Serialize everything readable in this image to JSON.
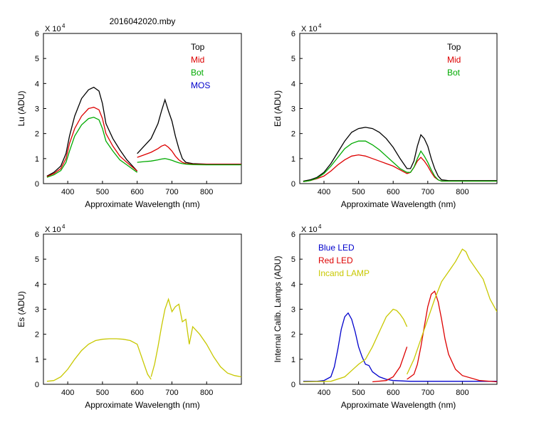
{
  "page_title": "2016042020.mby",
  "chart_data": [
    {
      "type": "line",
      "title": "",
      "xlabel": "Approximate Wavelength (nm)",
      "ylabel": "Lu (ADU)",
      "y_multiplier": "X 10",
      "y_multiplier_exp": "4",
      "xlim": [
        330,
        900
      ],
      "ylim": [
        0,
        6
      ],
      "xticks": [
        400,
        500,
        600,
        700,
        800
      ],
      "yticks": [
        0,
        1,
        2,
        3,
        4,
        5,
        6
      ],
      "legend": [
        {
          "label": "Top",
          "color": "#000000"
        },
        {
          "label": "Mid",
          "color": "#dd0000"
        },
        {
          "label": "Bot",
          "color": "#00aa00"
        },
        {
          "label": "MOS",
          "color": "#0000cc"
        }
      ],
      "series": [
        {
          "name": "Top",
          "color": "#000000",
          "segments": [
            {
              "x": [
                340,
                360,
                380,
                395,
                405,
                420,
                440,
                460,
                475,
                490,
                500,
                510,
                530,
                550,
                570,
                590,
                600
              ],
              "y": [
                0.3,
                0.45,
                0.7,
                1.2,
                1.9,
                2.7,
                3.4,
                3.75,
                3.85,
                3.7,
                3.2,
                2.4,
                1.8,
                1.35,
                0.95,
                0.65,
                0.5
              ]
            },
            {
              "x": [
                600,
                620,
                640,
                660,
                670,
                680,
                690,
                700,
                710,
                720,
                730,
                740,
                760,
                800,
                850,
                900
              ],
              "y": [
                1.2,
                1.5,
                1.8,
                2.4,
                2.9,
                3.35,
                2.9,
                2.5,
                1.9,
                1.4,
                1.0,
                0.85,
                0.8,
                0.78,
                0.78,
                0.78
              ]
            }
          ]
        },
        {
          "name": "Mid",
          "color": "#dd0000",
          "segments": [
            {
              "x": [
                340,
                360,
                380,
                395,
                405,
                420,
                440,
                460,
                475,
                490,
                500,
                510,
                530,
                550,
                570,
                590,
                600
              ],
              "y": [
                0.28,
                0.4,
                0.6,
                1.0,
                1.6,
                2.2,
                2.7,
                3.0,
                3.05,
                2.95,
                2.6,
                2.0,
                1.5,
                1.1,
                0.85,
                0.62,
                0.5
              ]
            },
            {
              "x": [
                600,
                620,
                640,
                660,
                670,
                680,
                690,
                700,
                710,
                720,
                730,
                740,
                760,
                800,
                850,
                900
              ],
              "y": [
                1.05,
                1.15,
                1.25,
                1.4,
                1.5,
                1.55,
                1.45,
                1.3,
                1.1,
                0.95,
                0.85,
                0.8,
                0.78,
                0.77,
                0.77,
                0.77
              ]
            }
          ]
        },
        {
          "name": "Bot",
          "color": "#00aa00",
          "segments": [
            {
              "x": [
                340,
                360,
                380,
                395,
                405,
                420,
                440,
                460,
                475,
                490,
                500,
                510,
                530,
                550,
                570,
                590,
                600
              ],
              "y": [
                0.25,
                0.35,
                0.52,
                0.85,
                1.3,
                1.9,
                2.35,
                2.6,
                2.65,
                2.55,
                2.2,
                1.7,
                1.3,
                0.95,
                0.75,
                0.55,
                0.45
              ]
            },
            {
              "x": [
                600,
                620,
                640,
                660,
                670,
                680,
                690,
                700,
                710,
                720,
                730,
                740,
                760,
                800,
                850,
                900
              ],
              "y": [
                0.85,
                0.88,
                0.9,
                0.95,
                0.98,
                1.0,
                0.97,
                0.93,
                0.88,
                0.83,
                0.8,
                0.78,
                0.76,
                0.75,
                0.75,
                0.75
              ]
            }
          ]
        }
      ]
    },
    {
      "type": "line",
      "title": "",
      "xlabel": "Approximate Wavelength (nm)",
      "ylabel": "Ed  (ADU)",
      "y_multiplier": "X 10",
      "y_multiplier_exp": "4",
      "xlim": [
        330,
        900
      ],
      "ylim": [
        0,
        6
      ],
      "xticks": [
        400,
        500,
        600,
        700,
        800
      ],
      "yticks": [
        0,
        1,
        2,
        3,
        4,
        5,
        6
      ],
      "legend": [
        {
          "label": "Top",
          "color": "#000000"
        },
        {
          "label": "Mid",
          "color": "#dd0000"
        },
        {
          "label": "Bot",
          "color": "#00aa00"
        }
      ],
      "series": [
        {
          "name": "Top",
          "color": "#000000",
          "segments": [
            {
              "x": [
                340,
                360,
                380,
                400,
                420,
                440,
                460,
                480,
                500,
                520,
                540,
                560,
                580,
                600,
                620,
                640,
                650,
                660,
                670,
                680,
                690,
                700,
                710,
                720,
                730,
                740,
                760,
                800,
                850,
                900
              ],
              "y": [
                0.1,
                0.15,
                0.25,
                0.45,
                0.8,
                1.25,
                1.7,
                2.05,
                2.2,
                2.25,
                2.2,
                2.05,
                1.8,
                1.45,
                1.0,
                0.6,
                0.6,
                0.9,
                1.5,
                1.95,
                1.8,
                1.5,
                1.0,
                0.6,
                0.3,
                0.15,
                0.12,
                0.12,
                0.12,
                0.12
              ]
            }
          ]
        },
        {
          "name": "Mid",
          "color": "#dd0000",
          "segments": [
            {
              "x": [
                340,
                360,
                380,
                400,
                420,
                440,
                460,
                480,
                500,
                520,
                540,
                560,
                580,
                600,
                620,
                640,
                650,
                660,
                670,
                680,
                690,
                700,
                710,
                720,
                730,
                740,
                760,
                800,
                850,
                900
              ],
              "y": [
                0.08,
                0.12,
                0.2,
                0.3,
                0.5,
                0.75,
                0.95,
                1.1,
                1.15,
                1.1,
                1.0,
                0.9,
                0.8,
                0.7,
                0.55,
                0.4,
                0.45,
                0.65,
                0.9,
                1.05,
                0.9,
                0.7,
                0.45,
                0.25,
                0.15,
                0.1,
                0.1,
                0.1,
                0.1,
                0.1
              ]
            }
          ]
        },
        {
          "name": "Bot",
          "color": "#00aa00",
          "segments": [
            {
              "x": [
                340,
                360,
                380,
                400,
                420,
                440,
                460,
                480,
                500,
                520,
                540,
                560,
                580,
                600,
                620,
                640,
                650,
                660,
                670,
                680,
                690,
                700,
                710,
                720,
                730,
                740,
                760,
                800,
                850,
                900
              ],
              "y": [
                0.08,
                0.12,
                0.22,
                0.4,
                0.7,
                1.05,
                1.4,
                1.6,
                1.7,
                1.7,
                1.55,
                1.35,
                1.1,
                0.85,
                0.6,
                0.45,
                0.45,
                0.65,
                1.0,
                1.3,
                1.1,
                0.85,
                0.55,
                0.3,
                0.15,
                0.1,
                0.1,
                0.1,
                0.1,
                0.1
              ]
            }
          ]
        }
      ]
    },
    {
      "type": "line",
      "title": "",
      "xlabel": "Approximate Wavelength (nm)",
      "ylabel": "Es  (ADU)",
      "y_multiplier": "X 10",
      "y_multiplier_exp": "4",
      "xlim": [
        330,
        900
      ],
      "ylim": [
        0,
        6
      ],
      "xticks": [
        400,
        500,
        600,
        700,
        800
      ],
      "yticks": [
        0,
        1,
        2,
        3,
        4,
        5,
        6
      ],
      "legend": [],
      "series": [
        {
          "name": "Es",
          "color": "#c8c800",
          "segments": [
            {
              "x": [
                340,
                360,
                380,
                400,
                420,
                440,
                460,
                480,
                500,
                520,
                540,
                560,
                580,
                600,
                610,
                620,
                630,
                640
              ],
              "y": [
                0.12,
                0.15,
                0.3,
                0.6,
                1.0,
                1.35,
                1.6,
                1.75,
                1.8,
                1.82,
                1.82,
                1.8,
                1.75,
                1.6,
                1.2,
                0.8,
                0.4,
                0.2
              ]
            },
            {
              "x": [
                640,
                650,
                660,
                670,
                680,
                690,
                700,
                710,
                720,
                730,
                740,
                750,
                760,
                780,
                800,
                820,
                840,
                860,
                880,
                900
              ],
              "y": [
                0.3,
                0.8,
                1.5,
                2.3,
                3.0,
                3.4,
                2.9,
                3.1,
                3.2,
                2.5,
                2.6,
                1.6,
                2.3,
                2.0,
                1.6,
                1.1,
                0.7,
                0.45,
                0.35,
                0.3
              ]
            }
          ]
        }
      ]
    },
    {
      "type": "line",
      "title": "",
      "xlabel": "Approximate Wavelength (nm)",
      "ylabel": "Internal Calib. Lamps (ADU)",
      "y_multiplier": "X 10",
      "y_multiplier_exp": "4",
      "xlim": [
        330,
        900
      ],
      "ylim": [
        0,
        6
      ],
      "xticks": [
        400,
        500,
        600,
        700,
        800
      ],
      "yticks": [
        0,
        1,
        2,
        3,
        4,
        5,
        6
      ],
      "legend": [
        {
          "label": "Blue LED",
          "color": "#0000cc"
        },
        {
          "label": "Red LED",
          "color": "#dd0000"
        },
        {
          "label": "Incand LAMP",
          "color": "#c8c800"
        }
      ],
      "series": [
        {
          "name": "Blue LED",
          "color": "#0000cc",
          "segments": [
            {
              "x": [
                340,
                380,
                400,
                420,
                430,
                440,
                450,
                460,
                470,
                480,
                490,
                500,
                510,
                520,
                530,
                540,
                560,
                580,
                600,
                650,
                700,
                800,
                900
              ],
              "y": [
                0.12,
                0.12,
                0.15,
                0.3,
                0.7,
                1.4,
                2.2,
                2.7,
                2.85,
                2.6,
                2.1,
                1.5,
                1.1,
                0.8,
                0.75,
                0.5,
                0.3,
                0.2,
                0.15,
                0.12,
                0.12,
                0.12,
                0.12
              ]
            }
          ]
        },
        {
          "name": "Red LED",
          "color": "#dd0000",
          "segments": [
            {
              "x": [
                540,
                580,
                600,
                620,
                630,
                640
              ],
              "y": [
                0.1,
                0.15,
                0.3,
                0.7,
                1.1,
                1.5
              ]
            },
            {
              "x": [
                640,
                660,
                670,
                680,
                690,
                700,
                710,
                720,
                730,
                740,
                750,
                760,
                780,
                800,
                850,
                900
              ],
              "y": [
                0.2,
                0.4,
                0.8,
                1.5,
                2.3,
                3.1,
                3.6,
                3.72,
                3.3,
                2.6,
                1.8,
                1.2,
                0.6,
                0.35,
                0.15,
                0.1
              ]
            }
          ]
        },
        {
          "name": "Incand LAMP",
          "color": "#c8c800",
          "segments": [
            {
              "x": [
                340,
                420,
                460,
                480,
                500,
                520,
                540,
                560,
                580,
                600,
                610,
                620,
                630,
                640
              ],
              "y": [
                0.1,
                0.12,
                0.3,
                0.55,
                0.8,
                1.0,
                1.5,
                2.1,
                2.7,
                3.0,
                2.95,
                2.8,
                2.6,
                2.3
              ]
            },
            {
              "x": [
                640,
                660,
                680,
                700,
                720,
                740,
                760,
                780,
                800,
                810,
                820,
                840,
                860,
                880,
                900
              ],
              "y": [
                0.4,
                1.0,
                1.8,
                2.6,
                3.4,
                4.1,
                4.5,
                4.9,
                5.4,
                5.3,
                5.0,
                4.6,
                4.2,
                3.4,
                2.9
              ]
            }
          ]
        }
      ]
    }
  ]
}
